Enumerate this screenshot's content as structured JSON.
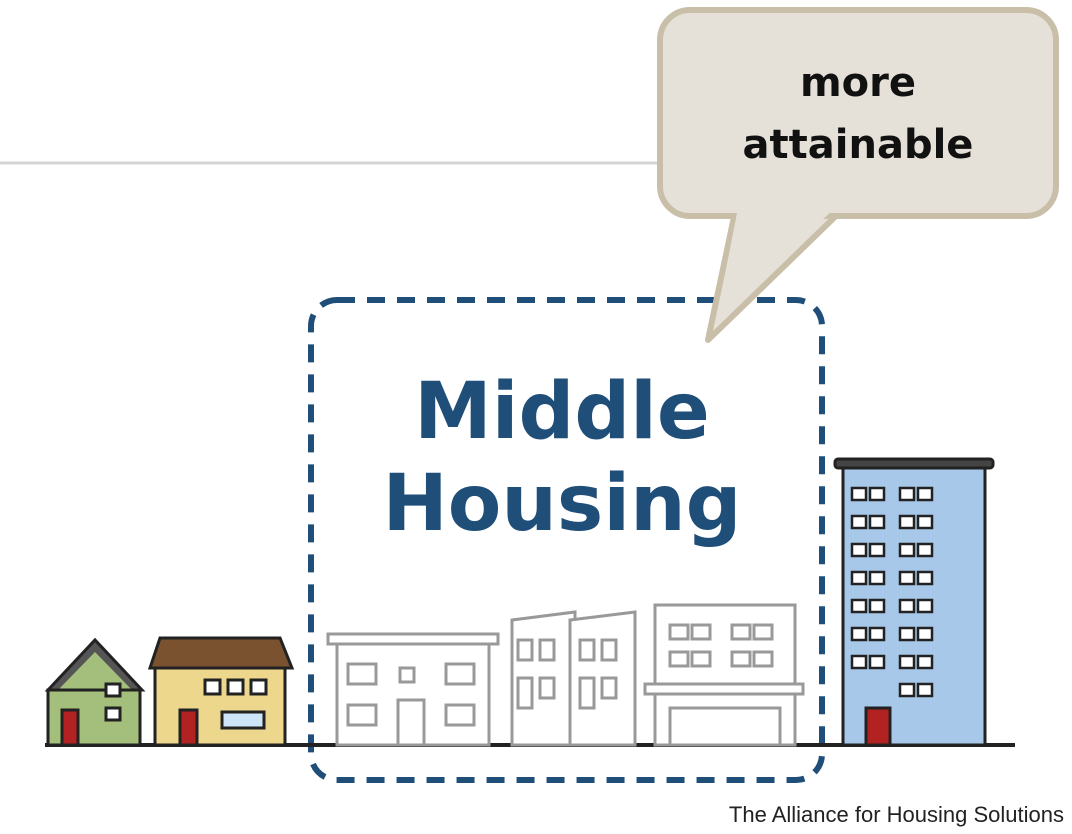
{
  "callout": {
    "lines": [
      "more",
      "attainable"
    ]
  },
  "heading": {
    "lines": [
      "Middle",
      "Housing"
    ]
  },
  "credit": "The Alliance for Housing Solutions"
}
